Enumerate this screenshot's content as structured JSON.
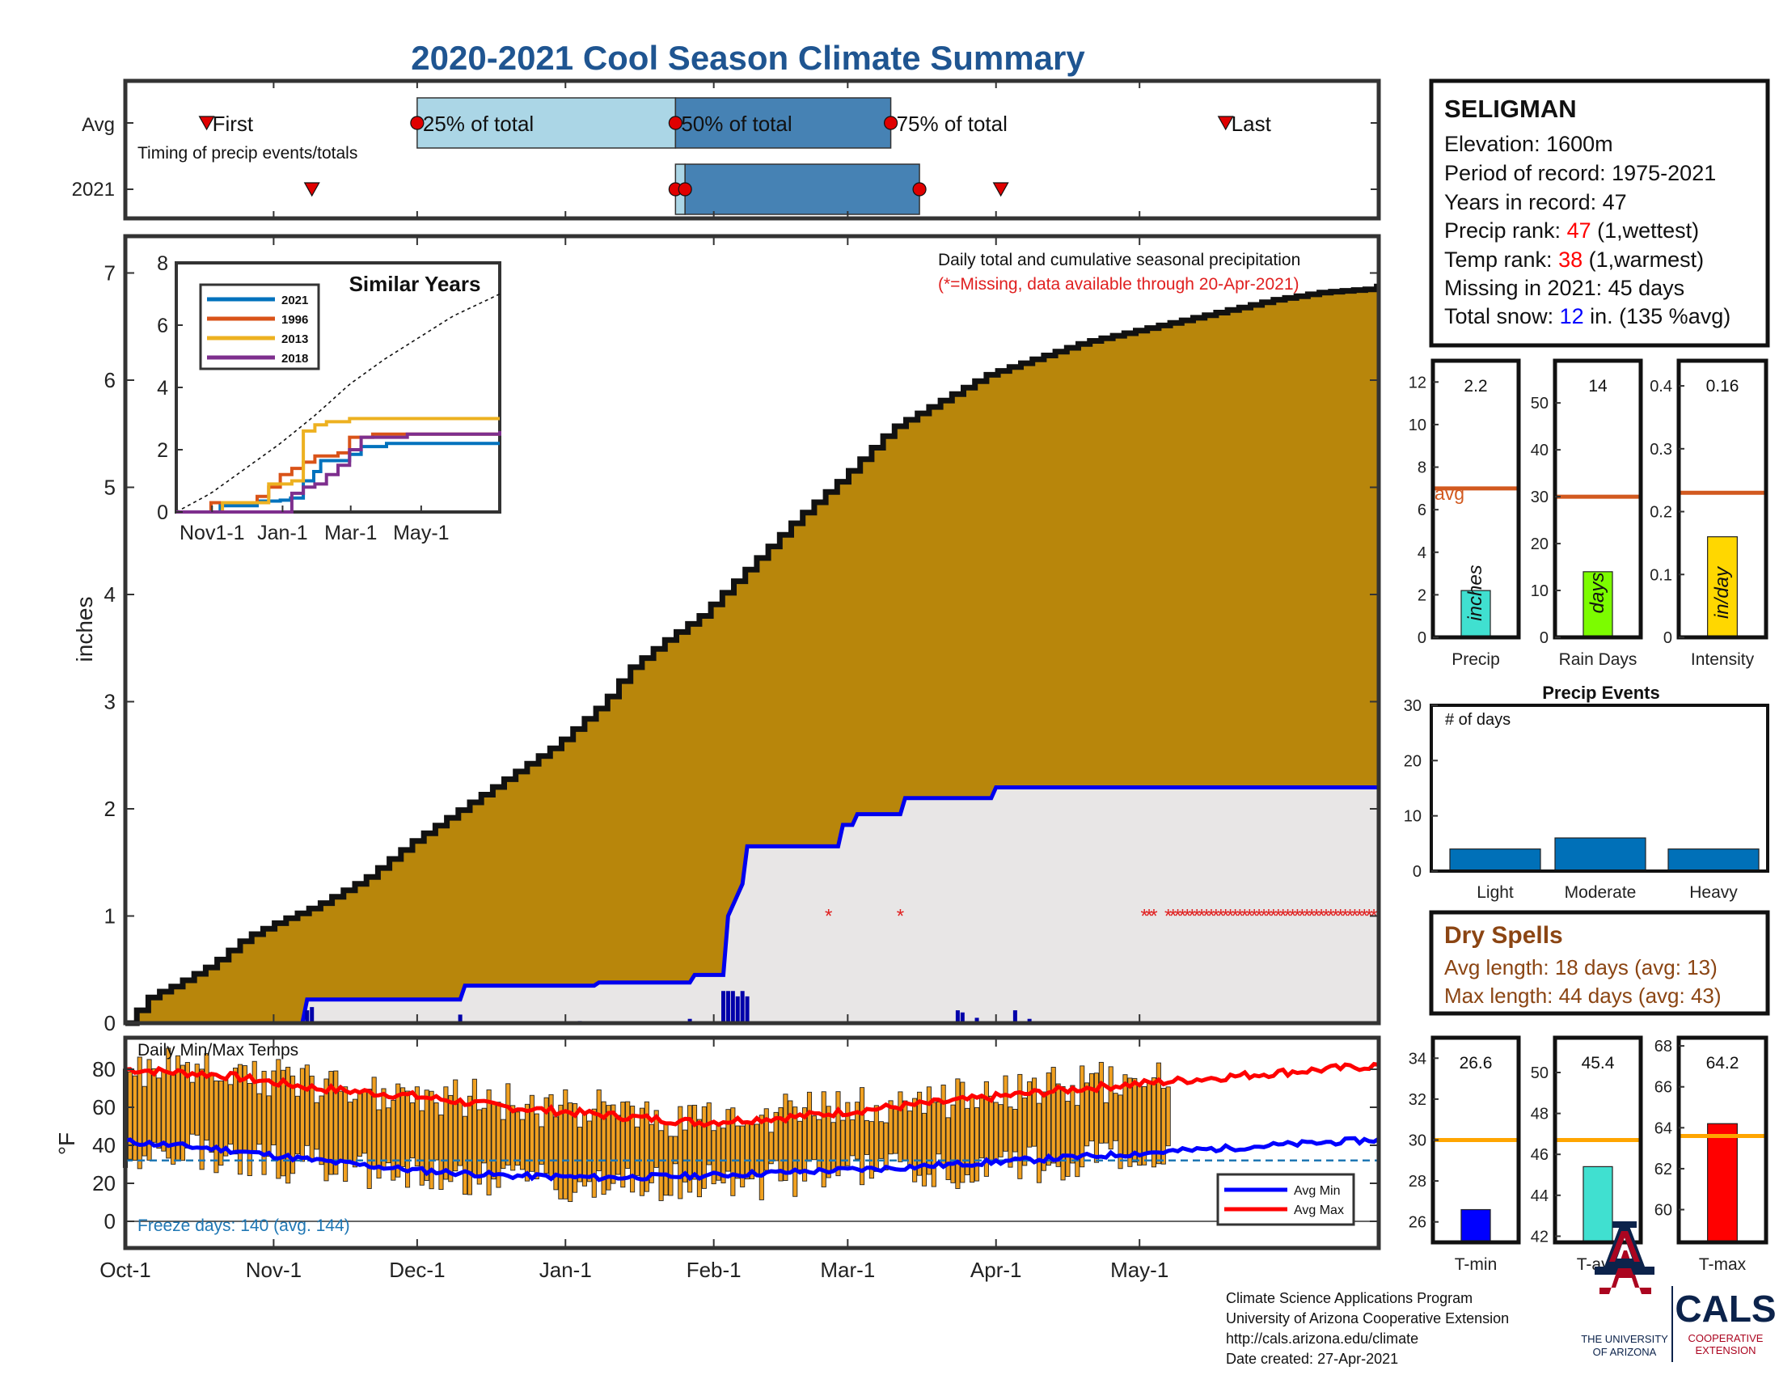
{
  "title": "2020-2021 Cool Season Climate Summary",
  "colors": {
    "title": "#1f5591",
    "cumulative_fill": "#b8860b",
    "cumulative_line": "#111111",
    "season2021_line": "#0000ee",
    "season2021_fill": "#e8e6e6",
    "daily_bar": "#0000aa",
    "missing": "#e02020",
    "light_blue": "#abd6e6",
    "mid_blue": "#4682b4",
    "temp_bar": "#f0a020",
    "avg_min": "#0000ff",
    "avg_max": "#ff0000",
    "freeze": "#1f77b4",
    "avg_line_orange": "#d2591f",
    "avg_line_gold": "#ffa500",
    "precip_bar": "#40e0d0",
    "raindays_bar": "#7cfc00",
    "intensity_bar": "#ffd700",
    "event_bar": "#0070b8",
    "dry_spell_text": "#8b4513",
    "rank_red": "#ff0000",
    "snow_blue": "#0000ff",
    "ua_navy": "#0c234b",
    "ua_red": "#ab0520"
  },
  "months": [
    "Oct-1",
    "Nov-1",
    "Dec-1",
    "Jan-1",
    "Feb-1",
    "Mar-1",
    "Apr-1",
    "May-1"
  ],
  "timing": {
    "row_avg": "Avg",
    "row_2021": "2021",
    "caption": "Timing of precip events/totals",
    "first": "First",
    "p25": "25% of total",
    "p50": "50% of total",
    "p75": "75% of total",
    "last": "Last",
    "avg_days": {
      "first": 17,
      "p25": 61,
      "p50": 115,
      "p75": 160,
      "last": 230
    },
    "y2021_days": {
      "first": 39,
      "p25": 115,
      "p50": 117,
      "p75": 166,
      "last": 183
    }
  },
  "precip_plot": {
    "ylabel": "inches",
    "y_ticks": [
      "0",
      "1",
      "2",
      "3",
      "4",
      "5",
      "6",
      "7"
    ],
    "note": "Daily total and cumulative seasonal precipitation",
    "missing_note": "(*=Missing, data available through 20-Apr-2021)"
  },
  "similar_years": {
    "title": "Similar Years",
    "legend": [
      "2021",
      "1996",
      "2013",
      "2018"
    ],
    "colors": [
      "#0072bd",
      "#d95319",
      "#edb120",
      "#7e2f8e"
    ],
    "y_ticks": [
      "0",
      "2",
      "4",
      "6",
      "8"
    ],
    "x_ticks": [
      "Nov1-1",
      "Jan-1",
      "Mar-1",
      "May-1"
    ]
  },
  "temp_plot": {
    "title": "Daily Min/Max Temps",
    "ylabel": "°F",
    "y_ticks": [
      "0",
      "20",
      "40",
      "60",
      "80"
    ],
    "freeze_text": "Freeze days: 140 (avg. 144)",
    "legend_min": "Avg Min",
    "legend_max": "Avg Max"
  },
  "station": {
    "name": "SELIGMAN",
    "elevation": "Elevation: 1600m",
    "period": "Period of record: 1975-2021",
    "years": "Years in record: 47",
    "precip_rank_label": "Precip rank: ",
    "precip_rank_value": "47",
    "precip_rank_note": " (1,wettest)",
    "temp_rank_label": "Temp rank: ",
    "temp_rank_value": "38",
    "temp_rank_note": " (1,warmest)",
    "missing": "Missing in 2021: 45 days",
    "snow_label": "Total snow: ",
    "snow_value": "12",
    "snow_note": " in. (135 %avg)"
  },
  "stats_bars": [
    {
      "label": "Precip",
      "value": 2.2,
      "value_text": "2.2",
      "unit": "inches",
      "avg": 7,
      "avg_label": "avg",
      "ymax": 13,
      "ticks": [
        "0",
        "2",
        "4",
        "6",
        "8",
        "10",
        "12"
      ]
    },
    {
      "label": "Rain Days",
      "value": 14,
      "value_text": "14",
      "unit": "days",
      "avg": 30,
      "ymax": 59,
      "ticks": [
        "0",
        "10",
        "20",
        "30",
        "40",
        "50"
      ]
    },
    {
      "label": "Intensity",
      "value": 0.16,
      "value_text": "0.16",
      "unit": "in/day",
      "avg": 0.23,
      "ymax": 0.44,
      "ticks": [
        "0",
        "0.1",
        "0.2",
        "0.3",
        "0.4"
      ]
    }
  ],
  "precip_events": {
    "title": "Precip Events",
    "ylabel": "# of days",
    "y_ticks": [
      "0",
      "10",
      "20",
      "30"
    ],
    "categories": [
      "Light",
      "Moderate",
      "Heavy"
    ],
    "values": [
      4,
      6,
      4
    ]
  },
  "dry_spells": {
    "title": "Dry Spells",
    "avg_length": "Avg length: 18 days (avg: 13)",
    "max_length": "Max length: 44 days (avg: 43)"
  },
  "temp_stats": [
    {
      "label": "T-min",
      "value": 26.6,
      "value_text": "26.6",
      "avg": 30,
      "ymin": 25,
      "ymax": 35,
      "ticks": [
        "26",
        "28",
        "30",
        "32",
        "34"
      ]
    },
    {
      "label": "T-avg",
      "value": 45.4,
      "value_text": "45.4",
      "avg": 46.7,
      "ymin": 41.7,
      "ymax": 51.7,
      "ticks": [
        "42",
        "44",
        "46",
        "48",
        "50"
      ]
    },
    {
      "label": "T-max",
      "value": 64.2,
      "value_text": "64.2",
      "avg": 63.6,
      "ymin": 58.4,
      "ymax": 68.4,
      "ticks": [
        "60",
        "62",
        "64",
        "66",
        "68"
      ]
    }
  ],
  "footer": {
    "line1": "Climate Science Applications Program",
    "line2": "University of Arizona Cooperative Extension",
    "line3": "http://cals.arizona.edu/climate",
    "line4": " Date created: 27-Apr-2021"
  },
  "logos": {
    "ua_line1": "THE UNIVERSITY",
    "ua_line2": "OF ARIZONA",
    "cals": "CALS",
    "coop1": "COOPERATIVE",
    "coop2": "EXTENSION"
  },
  "chart_data": [
    {
      "type": "area",
      "title": "Daily total and cumulative seasonal precipitation",
      "xlabel": "",
      "ylabel": "inches",
      "ylim": [
        0,
        7.35
      ],
      "x_unit": "days since Oct-1",
      "average_cumulative": {
        "x": [
          0,
          5,
          10,
          18,
          25,
          32,
          40,
          50,
          60,
          70,
          80,
          90,
          100,
          105,
          112,
          120,
          130,
          140,
          150,
          160,
          170,
          180,
          190,
          200,
          210,
          220,
          230,
          240,
          250,
          260,
          262
        ],
        "y": [
          0,
          0.25,
          0.35,
          0.55,
          0.8,
          0.95,
          1.1,
          1.35,
          1.7,
          2,
          2.3,
          2.6,
          3,
          3.3,
          3.55,
          3.8,
          4.25,
          4.7,
          5.1,
          5.55,
          5.8,
          6.05,
          6.2,
          6.35,
          6.45,
          6.55,
          6.65,
          6.75,
          6.82,
          6.85,
          6.88
        ]
      },
      "cumulative_2021": {
        "x": [
          0,
          37,
          38,
          70,
          71,
          98,
          99,
          118,
          119,
          125,
          126,
          129,
          130,
          149,
          150,
          152,
          153,
          162,
          163,
          181,
          182,
          262
        ],
        "y": [
          0,
          0,
          0.22,
          0.22,
          0.35,
          0.35,
          0.38,
          0.38,
          0.45,
          0.45,
          1.0,
          1.3,
          1.65,
          1.65,
          1.85,
          1.85,
          1.95,
          1.95,
          2.1,
          2.1,
          2.2,
          2.2
        ]
      },
      "daily_2021": {
        "x": [
          38,
          39,
          70,
          95,
          118,
          125,
          126,
          127,
          128,
          129,
          130,
          174,
          175,
          178,
          186,
          189
        ],
        "y": [
          0.12,
          0.15,
          0.08,
          0.02,
          0.04,
          0.3,
          0.3,
          0.3,
          0.25,
          0.3,
          0.25,
          0.12,
          0.1,
          0.05,
          0.12,
          0.04
        ]
      },
      "missing_days": [
        147,
        162,
        213,
        214,
        215,
        218,
        219,
        220,
        221,
        222,
        223,
        224,
        225,
        226,
        227,
        228,
        229,
        230,
        231,
        232,
        233,
        234,
        235,
        236,
        237,
        238,
        239,
        240,
        241,
        242,
        243,
        244,
        245,
        246,
        247,
        248,
        249,
        250,
        251,
        252,
        253,
        254,
        255,
        256,
        257,
        258,
        259,
        260,
        261
      ]
    },
    {
      "type": "line",
      "title": "Similar Years",
      "ylim": [
        0,
        8
      ],
      "x_unit": "days since Oct-1",
      "x_ticks": [
        "Nov1-1",
        "Jan-1",
        "Mar-1",
        "May-1"
      ],
      "average": {
        "x": [
          0,
          30,
          60,
          90,
          120,
          150,
          180,
          210,
          240,
          280
        ],
        "y": [
          0,
          0.6,
          1.4,
          2.2,
          3.1,
          4.1,
          4.9,
          5.6,
          6.3,
          7.0
        ]
      },
      "series": [
        {
          "name": "2021",
          "x": [
            0,
            38,
            70,
            90,
            99,
            110,
            119,
            125,
            130,
            150,
            160,
            182,
            280
          ],
          "y": [
            0,
            0.2,
            0.35,
            0.38,
            0.45,
            1.0,
            1.3,
            1.65,
            1.65,
            1.85,
            2.1,
            2.2,
            2.2
          ]
        },
        {
          "name": "1996",
          "x": [
            0,
            30,
            60,
            70,
            80,
            90,
            100,
            110,
            120,
            140,
            150,
            170,
            280
          ],
          "y": [
            0,
            0.3,
            0.3,
            0.5,
            0.8,
            1.2,
            1.4,
            1.6,
            1.8,
            1.9,
            2.4,
            2.5,
            2.5
          ]
        },
        {
          "name": "2013",
          "x": [
            0,
            40,
            70,
            80,
            90,
            100,
            110,
            120,
            130,
            150,
            170,
            200,
            280
          ],
          "y": [
            0,
            0.3,
            0.3,
            0.9,
            0.9,
            1.0,
            2.6,
            2.8,
            2.9,
            3.0,
            3.0,
            3.0,
            3.0
          ]
        },
        {
          "name": "2018",
          "x": [
            0,
            60,
            90,
            100,
            110,
            120,
            130,
            140,
            150,
            160,
            200,
            280
          ],
          "y": [
            0,
            0,
            0,
            0.6,
            0.8,
            0.9,
            1.2,
            1.5,
            2.0,
            2.4,
            2.5,
            2.6
          ]
        }
      ]
    },
    {
      "type": "bar",
      "title": "Daily Min/Max Temps",
      "ylabel": "°F",
      "ylim": [
        -15,
        95
      ],
      "x_unit": "days since Oct-1",
      "avg_max": {
        "x": [
          0,
          20,
          40,
          60,
          80,
          100,
          120,
          140,
          160,
          180,
          200,
          220,
          240,
          262
        ],
        "y": [
          80,
          77,
          70,
          66,
          60,
          56,
          52,
          55,
          60,
          65,
          70,
          74,
          78,
          82
        ]
      },
      "avg_min": {
        "x": [
          0,
          20,
          40,
          60,
          80,
          100,
          120,
          140,
          160,
          180,
          200,
          220,
          240,
          262
        ],
        "y": [
          42,
          38,
          32,
          27,
          24,
          23,
          24,
          26,
          28,
          31,
          34,
          37,
          40,
          43
        ]
      },
      "freeze_line": 32,
      "observed_days": [
        0,
        218
      ]
    },
    {
      "type": "bar",
      "title": "Precip Events",
      "categories": [
        "Light",
        "Moderate",
        "Heavy"
      ],
      "values": [
        4,
        6,
        4
      ],
      "ylabel": "# of days",
      "ylim": [
        0,
        30
      ]
    },
    {
      "type": "bar",
      "categories": [
        "Precip",
        "Rain Days",
        "Intensity"
      ],
      "values": [
        2.2,
        14,
        0.16
      ],
      "averages": [
        7,
        30,
        0.23
      ]
    },
    {
      "type": "bar",
      "categories": [
        "T-min",
        "T-avg",
        "T-max"
      ],
      "values": [
        26.6,
        45.4,
        64.2
      ],
      "averages": [
        30,
        46.7,
        63.6
      ]
    }
  ]
}
